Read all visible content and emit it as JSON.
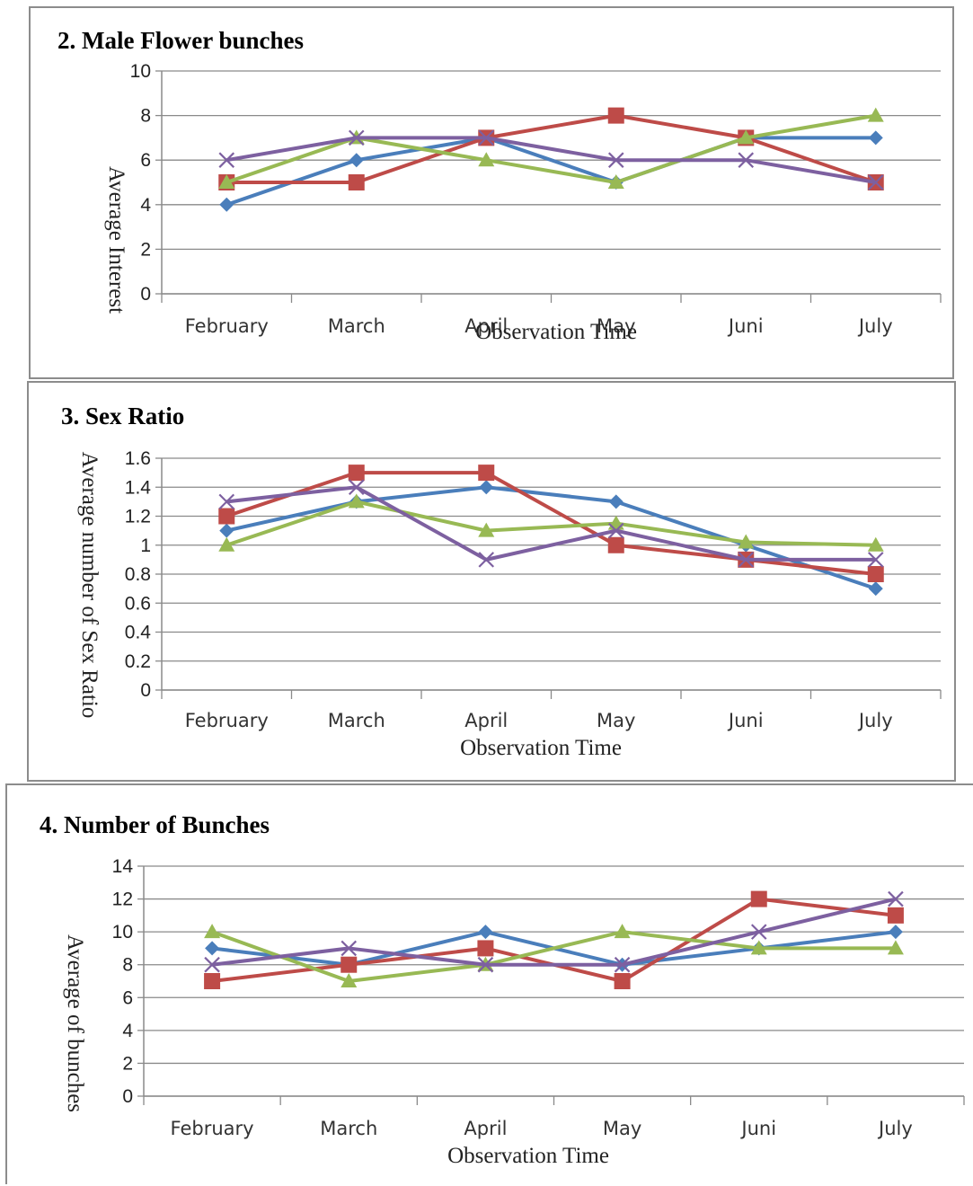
{
  "series_colors": [
    "#4a7ebb",
    "#be4b48",
    "#98b954",
    "#7d60a0"
  ],
  "series_markers": [
    "diamond",
    "square",
    "triangle",
    "x"
  ],
  "chart_data": [
    {
      "type": "line",
      "title": "2. Male Flower bunches",
      "xlabel": "Observation Time",
      "ylabel": "Average Interest",
      "categories": [
        "February",
        "March",
        "April",
        "May",
        "Juni",
        "July"
      ],
      "ylim": [
        0,
        10
      ],
      "yticks": [
        "0",
        "2",
        "4",
        "6",
        "8",
        "10"
      ],
      "grid": true,
      "series": [
        {
          "values": [
            4,
            6,
            7,
            5,
            7,
            7
          ]
        },
        {
          "values": [
            5,
            5,
            7,
            8,
            7,
            5
          ]
        },
        {
          "values": [
            5,
            7,
            6,
            5,
            7,
            8
          ]
        },
        {
          "values": [
            6,
            7,
            7,
            6,
            6,
            5
          ]
        }
      ]
    },
    {
      "type": "line",
      "title": "3. Sex Ratio",
      "xlabel": "Observation Time",
      "ylabel": "Average number of Sex Ratio",
      "categories": [
        "February",
        "March",
        "April",
        "May",
        "Juni",
        "July"
      ],
      "ylim": [
        0,
        1.6
      ],
      "yticks": [
        "0",
        "0.2",
        "0.4",
        "0.6",
        "0.8",
        "1",
        "1.2",
        "1.4",
        "1.6"
      ],
      "grid": true,
      "series": [
        {
          "values": [
            1.1,
            1.3,
            1.4,
            1.3,
            1.0,
            0.7
          ]
        },
        {
          "values": [
            1.2,
            1.5,
            1.5,
            1.0,
            0.9,
            0.8
          ]
        },
        {
          "values": [
            1.0,
            1.3,
            1.1,
            1.15,
            1.02,
            1.0
          ]
        },
        {
          "values": [
            1.3,
            1.4,
            0.9,
            1.1,
            0.9,
            0.9
          ]
        }
      ]
    },
    {
      "type": "line",
      "title": "4. Number of Bunches",
      "xlabel": "Observation Time",
      "ylabel": "Average of bunches",
      "categories": [
        "February",
        "March",
        "April",
        "May",
        "Juni",
        "July"
      ],
      "ylim": [
        0,
        14
      ],
      "yticks": [
        "0",
        "2",
        "4",
        "6",
        "8",
        "10",
        "12",
        "14"
      ],
      "grid": true,
      "series": [
        {
          "values": [
            9,
            8,
            10,
            8,
            9,
            10
          ]
        },
        {
          "values": [
            7,
            8,
            9,
            7,
            12,
            11
          ]
        },
        {
          "values": [
            10,
            7,
            8,
            10,
            9,
            9
          ]
        },
        {
          "values": [
            8,
            9,
            8,
            8,
            10,
            12
          ]
        }
      ]
    }
  ]
}
